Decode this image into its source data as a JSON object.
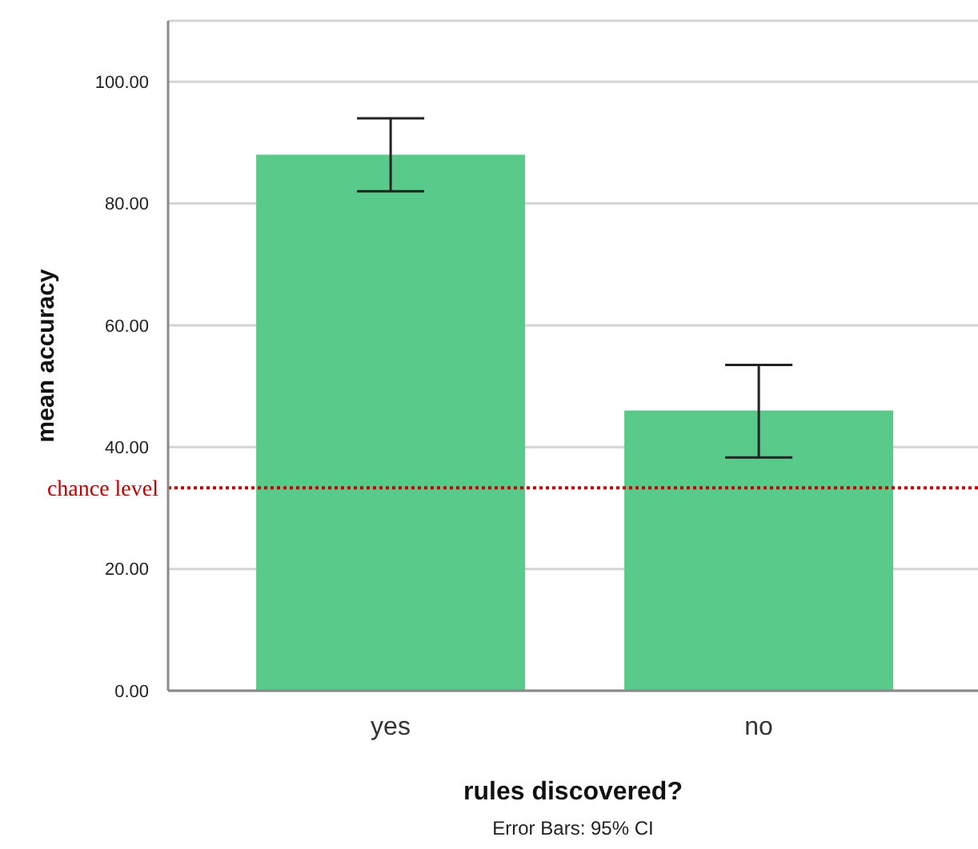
{
  "chart_data": {
    "type": "bar",
    "categories": [
      "yes",
      "no"
    ],
    "values": [
      88,
      46
    ],
    "errors": [
      [
        82,
        94
      ],
      [
        38.3,
        53.5
      ]
    ],
    "color": "#59ca89",
    "xlabel": "rules discovered?",
    "ylabel": "mean accuracy",
    "ylim": [
      0,
      110
    ],
    "yticks": [
      {
        "value": 0,
        "label": "0.00"
      },
      {
        "value": 20,
        "label": "20.00"
      },
      {
        "value": 40,
        "label": "40.00"
      },
      {
        "value": 60,
        "label": "60.00"
      },
      {
        "value": 80,
        "label": "80.00"
      },
      {
        "value": 100,
        "label": "100.00"
      }
    ],
    "grid": "y",
    "ref_lines": [
      {
        "axis": "y",
        "value": 33.3,
        "label": "chance level",
        "color": "#c00000",
        "line_style": "dotted"
      }
    ],
    "annotations": [
      "Error Bars: 95% CI"
    ]
  }
}
